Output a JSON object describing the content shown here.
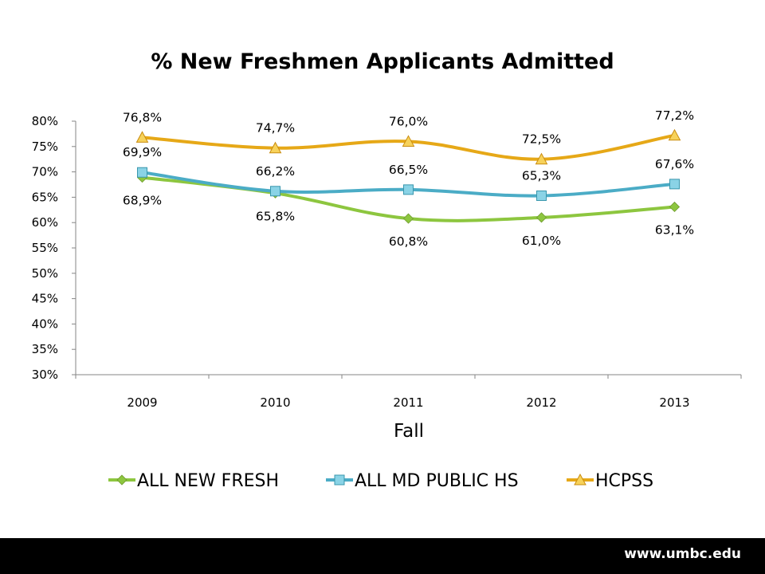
{
  "chart_data": {
    "type": "line",
    "title": "% New Freshmen Applicants Admitted",
    "xlabel": "Fall",
    "ylabel": "",
    "categories": [
      "2009",
      "2010",
      "2011",
      "2012",
      "2013"
    ],
    "ylim": [
      30,
      80
    ],
    "yticks": [
      30,
      35,
      40,
      45,
      50,
      55,
      60,
      65,
      70,
      75,
      80
    ],
    "ytick_labels": [
      "30%",
      "35%",
      "40%",
      "45%",
      "50%",
      "55%",
      "60%",
      "65%",
      "70%",
      "75%",
      "80%"
    ],
    "grid": false,
    "legend_position": "bottom",
    "series": [
      {
        "name": "ALL NEW FRESH",
        "values": [
          68.9,
          65.8,
          60.8,
          61.0,
          63.1
        ],
        "labels": [
          "68,9%",
          "65,8%",
          "60,8%",
          "61,0%",
          "63,1%"
        ],
        "color": "#8dc63f",
        "marker": "diamond",
        "label_position": "below"
      },
      {
        "name": "ALL MD PUBLIC HS",
        "values": [
          69.9,
          66.2,
          66.5,
          65.3,
          67.6
        ],
        "labels": [
          "69,9%",
          "66,2%",
          "66,5%",
          "65,3%",
          "67,6%"
        ],
        "color": "#4bacc6",
        "marker": "square",
        "label_position": "above"
      },
      {
        "name": "HCPSS",
        "values": [
          76.8,
          74.7,
          76.0,
          72.5,
          77.2
        ],
        "labels": [
          "76,8%",
          "74,7%",
          "76,0%",
          "72,5%",
          "77,2%"
        ],
        "color": "#e6a817",
        "marker": "triangle",
        "label_position": "above"
      }
    ]
  },
  "footer": {
    "url": "www.umbc.edu"
  }
}
